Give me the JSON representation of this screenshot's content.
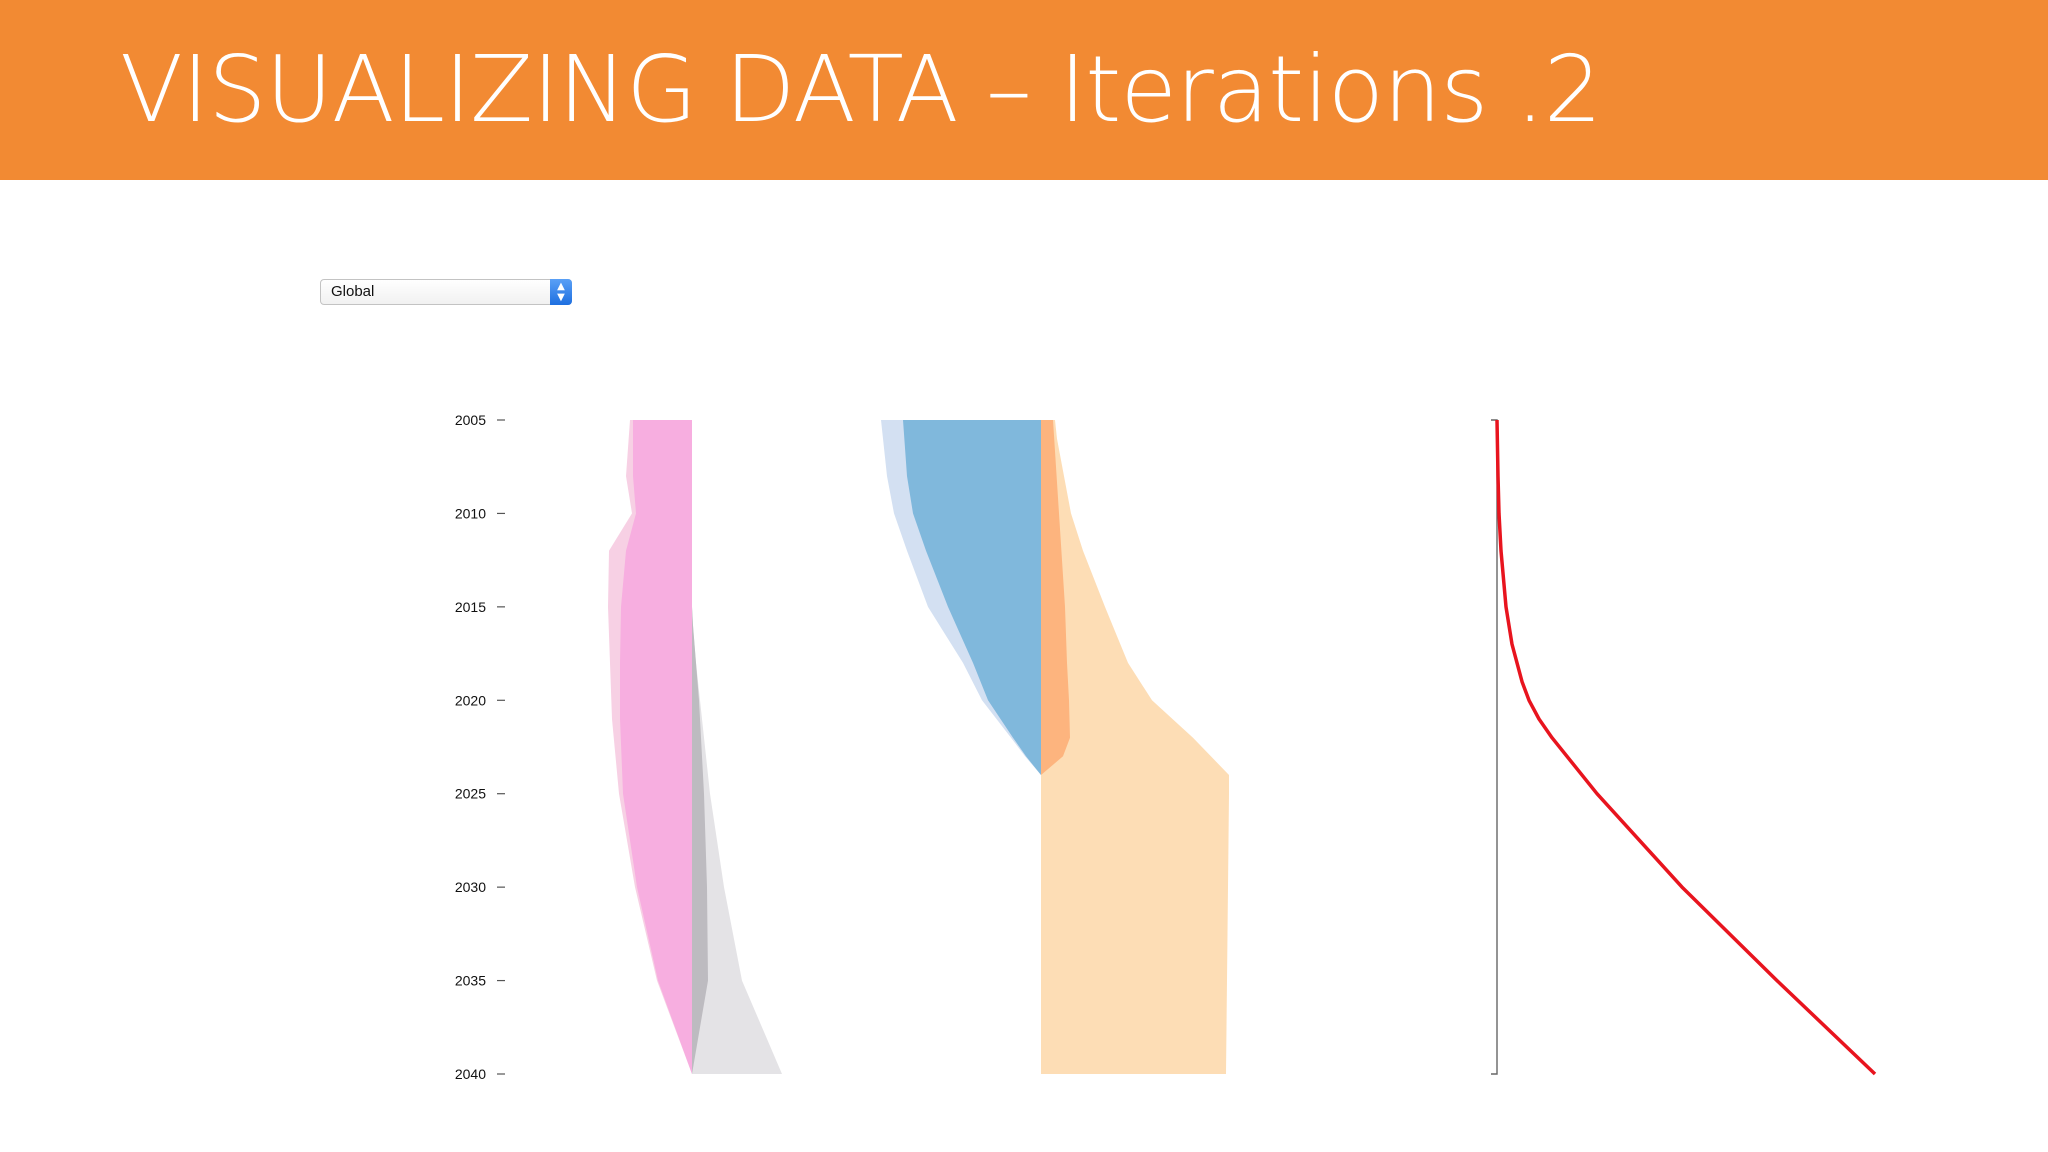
{
  "header": {
    "title": "VISUALIZING DATA – Iterations .2",
    "background": "#f28a33"
  },
  "region_select": {
    "selected": "Global",
    "icon": "chevron-up-down-icon"
  },
  "chart_data": {
    "type": "area",
    "orientation": "vertical",
    "y_axis": {
      "ticks": [
        "2005",
        "2010",
        "2015",
        "2020",
        "2025",
        "2030",
        "2035",
        "2040"
      ],
      "range": [
        2005,
        2040
      ]
    },
    "x_axis": {
      "labels": []
    },
    "grid": false,
    "legend": "none",
    "panels": [
      {
        "series": [
          {
            "color": "#f7d0e4",
            "edge": "left",
            "years": [
              2005,
              2008,
              2010,
              2012,
              2015,
              2018,
              2021,
              2025,
              2030,
              2035,
              2040
            ],
            "values": [
              6.2,
              6.6,
              6.0,
              8.3,
              8.4,
              8.2,
              8.0,
              7.3,
              5.7,
              3.5,
              0.0
            ]
          },
          {
            "color": "#f7aee0",
            "edge": "left",
            "years": [
              2005,
              2008,
              2010,
              2012,
              2015,
              2018,
              2021,
              2025,
              2030,
              2035,
              2040
            ],
            "values": [
              5.9,
              5.9,
              5.6,
              6.6,
              7.1,
              7.2,
              7.2,
              6.9,
              5.5,
              3.4,
              0.0
            ]
          },
          {
            "color": "#e4e3e6",
            "edge": "right",
            "years": [
              2005,
              2015,
              2016,
              2018,
              2020,
              2025,
              2030,
              2035,
              2040
            ],
            "values": [
              0.0,
              0.0,
              0.1,
              0.4,
              0.8,
              1.8,
              3.2,
              5.0,
              9.0
            ]
          },
          {
            "color": "#bdbbc0",
            "edge": "right",
            "years": [
              2005,
              2015,
              2016,
              2020,
              2025,
              2030,
              2035,
              2040
            ],
            "values": [
              0.0,
              0.0,
              0.1,
              0.7,
              1.2,
              1.5,
              1.6,
              0.0
            ]
          }
        ]
      },
      {
        "series": [
          {
            "color": "#d3e0f2",
            "edge": "left",
            "years": [
              2005,
              2008,
              2010,
              2012,
              2015,
              2018,
              2020,
              2022,
              2023,
              2024
            ],
            "values": [
              16.0,
              15.4,
              14.7,
              13.4,
              11.3,
              7.8,
              5.9,
              3.0,
              1.6,
              0.0
            ]
          },
          {
            "color": "#80b8dc",
            "edge": "left",
            "years": [
              2005,
              2008,
              2010,
              2012,
              2015,
              2018,
              2020,
              2022,
              2023,
              2024
            ],
            "values": [
              13.8,
              13.4,
              12.8,
              11.5,
              9.3,
              6.8,
              5.3,
              2.8,
              1.5,
              0.0
            ]
          },
          {
            "color": "#fdddb5",
            "edge": "right",
            "years": [
              2005,
              2006,
              2008,
              2010,
              2012,
              2015,
              2018,
              2020,
              2022,
              2024,
              2025,
              2040
            ],
            "values": [
              1.4,
              1.6,
              2.3,
              3.0,
              4.2,
              6.4,
              8.7,
              11.1,
              15.2,
              18.8,
              18.8,
              18.5
            ]
          },
          {
            "color": "#fdb47e",
            "edge": "right",
            "years": [
              2005,
              2010,
              2015,
              2018,
              2020,
              2022,
              2023,
              2024
            ],
            "values": [
              1.2,
              1.8,
              2.4,
              2.6,
              2.8,
              2.9,
              2.2,
              0.0
            ]
          }
        ]
      },
      {
        "series": [
          {
            "color": "#e8141e",
            "years": [
              2005,
              2008,
              2010,
              2012,
              2015,
              2017,
              2019,
              2020,
              2021,
              2022,
              2025,
              2030,
              2035,
              2040
            ],
            "values": [
              0.0,
              0.1,
              0.2,
              0.4,
              0.9,
              1.5,
              2.5,
              3.2,
              4.2,
              5.5,
              10.0,
              18.5,
              28.0,
              37.8
            ]
          }
        ]
      }
    ]
  }
}
